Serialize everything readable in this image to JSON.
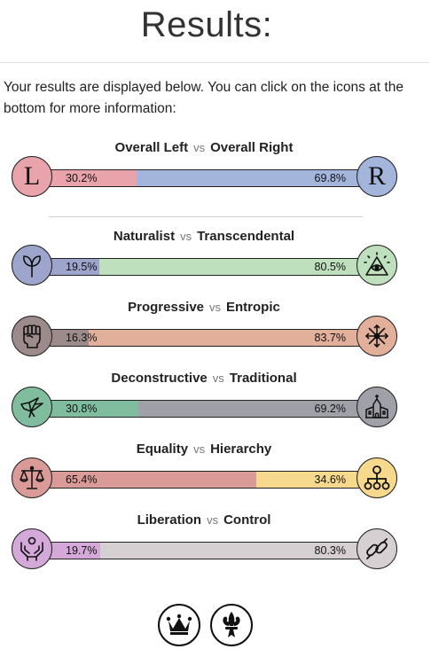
{
  "page": {
    "title": "Results:",
    "intro": "Your results are displayed below. You can click on the icons at the bottom for more information:"
  },
  "colors": {
    "left": "#e8a3ab",
    "right": "#a4b5dc",
    "naturalist": "#9da5cc",
    "transcendental": "#bfe0bd",
    "progressive": "#9d8a8a",
    "entropic": "#e2af9b",
    "deconstructive": "#80bd9e",
    "traditional": "#a0a0a8",
    "equality": "#d99a98",
    "hierarchy": "#f7d98d",
    "liberation": "#d4a8d9",
    "control": "#d7d0d2"
  },
  "axes": [
    {
      "left_label": "Overall Left",
      "vs": "vs",
      "right_label": "Overall Right",
      "left_pct": "30.2%",
      "right_pct": "69.8%",
      "left_value": 30.2,
      "right_value": 69.8,
      "left_icon": "letter-l-icon",
      "right_icon": "letter-r-icon",
      "left_glyph": "L",
      "right_glyph": "R"
    },
    {
      "left_label": "Naturalist",
      "vs": "vs",
      "right_label": "Transcendental",
      "left_pct": "19.5%",
      "right_pct": "80.5%",
      "left_value": 19.5,
      "right_value": 80.5,
      "left_icon": "sprout-icon",
      "right_icon": "eye-pyramid-icon"
    },
    {
      "left_label": "Progressive",
      "vs": "vs",
      "right_label": "Entropic",
      "left_pct": "16.3%",
      "right_pct": "83.7%",
      "left_value": 16.3,
      "right_value": 83.7,
      "left_icon": "raised-fist-icon",
      "right_icon": "arrows-star-icon"
    },
    {
      "left_label": "Deconstructive",
      "vs": "vs",
      "right_label": "Traditional",
      "left_pct": "30.8%",
      "right_pct": "69.2%",
      "left_value": 30.8,
      "right_value": 69.2,
      "left_icon": "broken-bird-icon",
      "right_icon": "church-icon"
    },
    {
      "left_label": "Equality",
      "vs": "vs",
      "right_label": "Hierarchy",
      "left_pct": "65.4%",
      "right_pct": "34.6%",
      "left_value": 65.4,
      "right_value": 34.6,
      "left_icon": "scales-icon",
      "right_icon": "hierarchy-icon"
    },
    {
      "left_label": "Liberation",
      "vs": "vs",
      "right_label": "Control",
      "left_pct": "19.7%",
      "right_pct": "80.3%",
      "left_value": 19.7,
      "right_value": 80.3,
      "left_icon": "freed-hands-icon",
      "right_icon": "chain-icon"
    }
  ],
  "footer": {
    "buttons": [
      {
        "icon": "crown-icon"
      },
      {
        "icon": "fleur-de-lis-icon"
      }
    ]
  }
}
